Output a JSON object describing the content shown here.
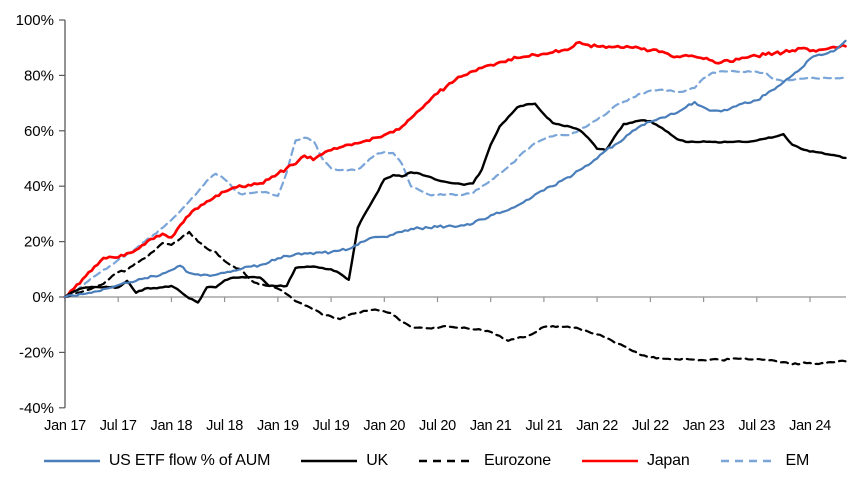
{
  "chart_data": {
    "type": "line",
    "title": "",
    "xlabel": "",
    "ylabel": "",
    "x_start_month": "Jan 17",
    "x_interval": "monthly",
    "x_tick_labels": [
      "Jan 17",
      "Jul 17",
      "Jan 18",
      "Jul 18",
      "Jan 19",
      "Jul 19",
      "Jan 20",
      "Jul 20",
      "Jan 21",
      "Jul 21",
      "Jan 22",
      "Jul 22",
      "Jan 23",
      "Jul 23",
      "Jan 24"
    ],
    "x_tick_month_indices": [
      0,
      6,
      12,
      18,
      24,
      30,
      36,
      42,
      48,
      54,
      60,
      66,
      72,
      78,
      84
    ],
    "y_tick_labels": [
      "100%",
      "80%",
      "60%",
      "40%",
      "20%",
      "0%",
      "-20%",
      "-40%"
    ],
    "y_tick_values": [
      100,
      80,
      60,
      40,
      20,
      0,
      -20,
      -40
    ],
    "ylim": [
      -40,
      100
    ],
    "grid": "zero-line-only",
    "legend_position": "bottom",
    "axis_colors": {
      "zero_line": "#949494",
      "y_axis": "#595959"
    },
    "series": [
      {
        "name": "US ETF flow % of AUM",
        "color": "#4a7ebb",
        "style": "solid",
        "width": 2.2,
        "wiggle": 0.45,
        "values": [
          0,
          0.5,
          1,
          1.5,
          2.2,
          3.2,
          4.3,
          5,
          5.8,
          6.8,
          7.5,
          8.5,
          9.7,
          11.3,
          8.7,
          8.2,
          8,
          8,
          8.7,
          9.5,
          10.3,
          11,
          11.5,
          12.5,
          14,
          14.8,
          15.5,
          15.8,
          15.5,
          16,
          16.2,
          16.8,
          17.3,
          18.8,
          20.5,
          21.7,
          21.7,
          22.5,
          23.5,
          24.6,
          24.8,
          25,
          25.3,
          25.5,
          25.3,
          25.8,
          26.5,
          28,
          29.5,
          30.3,
          31.4,
          33,
          35,
          37,
          38.5,
          40,
          42,
          43.3,
          45.8,
          47.6,
          50,
          53,
          55,
          57,
          60,
          62,
          63.2,
          64.5,
          65.5,
          66.5,
          68.5,
          70.4,
          68.5,
          67.3,
          67,
          68,
          69.5,
          70,
          71,
          73,
          75,
          77.5,
          80,
          82.5,
          86,
          87.5,
          88,
          89.5,
          92.5
        ]
      },
      {
        "name": "UK",
        "color": "#000000",
        "style": "solid",
        "width": 2.4,
        "wiggle": 0.2,
        "values": [
          0,
          2,
          3.2,
          3.6,
          3.5,
          3.5,
          3.5,
          5.8,
          1.5,
          3,
          3.2,
          3.5,
          4,
          2,
          -0.5,
          -2,
          3.5,
          3.5,
          6,
          7,
          7.2,
          7.2,
          7,
          4,
          4,
          4,
          10.5,
          10.8,
          11,
          10.5,
          10,
          8.5,
          6.2,
          25,
          31,
          36.5,
          42.5,
          44,
          43.5,
          45,
          44.5,
          43.5,
          42.2,
          41.5,
          41,
          40.5,
          41,
          46,
          55,
          61.5,
          65,
          68.5,
          69.5,
          69.8,
          66,
          62.8,
          62,
          61.4,
          60.3,
          57.4,
          53.5,
          53,
          58,
          62.5,
          63,
          63.8,
          63.5,
          61.5,
          59.5,
          57,
          56,
          56,
          56.2,
          56,
          55.8,
          56,
          56.2,
          56,
          56.5,
          57.2,
          57.8,
          58.8,
          55,
          53.5,
          52.5,
          52.2,
          51.5,
          51,
          50.2
        ]
      },
      {
        "name": "Eurozone",
        "color": "#000000",
        "style": "dashed",
        "width": 2.2,
        "wiggle": 0.3,
        "values": [
          0,
          1,
          2,
          3,
          4.3,
          6.5,
          9,
          9.7,
          12.3,
          14,
          16.5,
          19.5,
          18.8,
          21,
          23.5,
          20,
          17.5,
          16.2,
          13,
          11,
          9.5,
          6,
          4.3,
          4,
          3,
          1,
          -1.5,
          -3,
          -4.5,
          -6.3,
          -7,
          -8,
          -6.5,
          -5.5,
          -5,
          -4.5,
          -5.2,
          -6.5,
          -9,
          -10.8,
          -11,
          -11.3,
          -11.2,
          -10.5,
          -11,
          -11,
          -11.7,
          -12,
          -12.6,
          -14,
          -15.8,
          -14.8,
          -14.4,
          -12.8,
          -10.8,
          -10.5,
          -10.8,
          -11,
          -11.5,
          -12.5,
          -13.5,
          -14.8,
          -16.5,
          -17.7,
          -19.5,
          -21,
          -21.8,
          -22,
          -22.3,
          -22.5,
          -22.3,
          -22.6,
          -22.8,
          -22.5,
          -22.8,
          -22.5,
          -22.3,
          -22.5,
          -22.4,
          -22.6,
          -23,
          -23.5,
          -24.3,
          -24,
          -23.8,
          -24.2,
          -23.6,
          -23.4,
          -23.2
        ]
      },
      {
        "name": "Japan",
        "color": "#ff0000",
        "style": "solid",
        "width": 2.7,
        "wiggle": 0.6,
        "values": [
          0,
          3,
          6.5,
          9.5,
          13,
          14.5,
          14.3,
          15.8,
          17,
          19,
          21,
          22.8,
          21.5,
          26,
          29.5,
          32,
          34.5,
          36.5,
          38,
          39.5,
          39.8,
          40.3,
          41,
          42.5,
          44.5,
          46.5,
          48,
          51,
          49.5,
          51.5,
          53,
          54,
          55,
          55.5,
          56.5,
          57.5,
          58.5,
          59.5,
          61.5,
          64.5,
          67.5,
          70.5,
          73.5,
          76,
          78.3,
          80,
          81.5,
          82.7,
          83.8,
          84.8,
          85.7,
          86.3,
          86.8,
          87.4,
          87.8,
          88.3,
          89,
          89.8,
          92,
          91,
          90.5,
          90,
          90.3,
          90,
          90,
          89.5,
          89,
          88.5,
          87.8,
          86.8,
          87.3,
          86.8,
          86,
          85.3,
          84.7,
          85,
          85.8,
          86.5,
          87,
          87.5,
          88,
          88.3,
          89,
          89.8,
          88.8,
          89.2,
          89.6,
          90,
          90.5
        ]
      },
      {
        "name": "EM",
        "color": "#7aa5d8",
        "style": "dashed",
        "width": 2.2,
        "wiggle": 0.3,
        "values": [
          0,
          1.5,
          4,
          7,
          9,
          11,
          13.4,
          15.5,
          17.5,
          20,
          22.5,
          25,
          27.8,
          31,
          34.5,
          38,
          42,
          44.5,
          42.5,
          39,
          37,
          37.5,
          38,
          37.5,
          36.5,
          45,
          56.5,
          57.5,
          56.5,
          50,
          46.5,
          45.8,
          45.8,
          46,
          48.5,
          51.5,
          52.3,
          52,
          48,
          40,
          38.5,
          37,
          36.8,
          37,
          36.8,
          37,
          37.5,
          40,
          42.2,
          44.5,
          47,
          50,
          53,
          55.6,
          57,
          58,
          58.5,
          58.5,
          60.3,
          62,
          64,
          66,
          69,
          70.5,
          72,
          73.5,
          74.5,
          74.8,
          74.5,
          74,
          74.5,
          75.5,
          79,
          81,
          81.5,
          81.5,
          81.3,
          81.5,
          81.3,
          81,
          78.5,
          77.8,
          78.3,
          78.8,
          79,
          78.8,
          79,
          79,
          79.3
        ]
      }
    ]
  }
}
